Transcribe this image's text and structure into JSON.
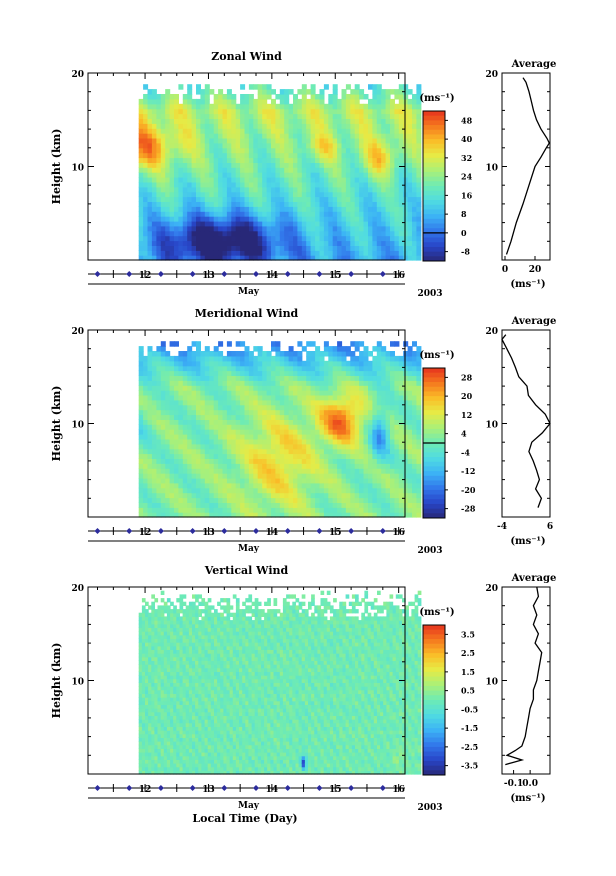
{
  "figure": {
    "bottom_xlabel": "Local Time (Day)",
    "colors": {
      "line": "#000000",
      "marker": "#2c2c9c",
      "missing": "#ffffff"
    }
  },
  "chart_data": [
    {
      "type": "heatmap",
      "title": "Zonal Wind",
      "ylabel": "Height (km)",
      "xlabel": "May",
      "year_label": "2003",
      "x_ticks": [
        "12",
        "13",
        "14",
        "15",
        "16"
      ],
      "y_ticks": [
        "10",
        "20"
      ],
      "xlim": [
        11.1,
        16.1
      ],
      "ylim": [
        0,
        20
      ],
      "colorbar": {
        "unit": "(ms⁻¹)",
        "tick_labels": [
          "48",
          "40",
          "32",
          "24",
          "16",
          "8",
          "0",
          "-8"
        ],
        "range": [
          -12,
          52
        ],
        "zero_line": 0
      },
      "profile": {
        "title": "Average",
        "xlabel": "(ms⁻¹)",
        "x_ticks": [
          "0",
          "20"
        ],
        "xlim": [
          -2,
          30
        ],
        "y": [
          0.6,
          2,
          4,
          6,
          8,
          10,
          11,
          12,
          12.5,
          13,
          14,
          15,
          16,
          17,
          18,
          19,
          19.5
        ],
        "x": [
          1,
          4,
          7.5,
          12,
          16,
          20,
          24,
          27.5,
          29.5,
          28,
          24,
          21,
          19,
          17.5,
          16,
          14,
          12
        ]
      }
    },
    {
      "type": "heatmap",
      "title": "Meridional Wind",
      "ylabel": "Height (km)",
      "xlabel": "May",
      "year_label": "2003",
      "x_ticks": [
        "12",
        "13",
        "14",
        "15",
        "16"
      ],
      "y_ticks": [
        "10",
        "20"
      ],
      "xlim": [
        11.1,
        16.1
      ],
      "ylim": [
        0,
        20
      ],
      "colorbar": {
        "unit": "(ms⁻¹)",
        "tick_labels": [
          "28",
          "20",
          "12",
          "4",
          "-4",
          "-12",
          "-20",
          "-28"
        ],
        "range": [
          -32,
          32
        ],
        "zero_line": 0
      },
      "profile": {
        "title": "Average",
        "xlabel": "(ms⁻¹)",
        "x_ticks": [
          "-4",
          "6"
        ],
        "xlim": [
          -4,
          6
        ],
        "y": [
          1,
          2,
          3,
          4,
          5,
          6,
          7,
          8,
          9,
          10,
          11,
          12,
          13,
          14,
          15,
          16,
          17,
          18,
          19,
          19.5
        ],
        "x": [
          3.5,
          4.2,
          3,
          3.8,
          3.2,
          2.5,
          1.6,
          2.2,
          4.4,
          6,
          5,
          3,
          1.5,
          1.2,
          -0.5,
          -1.2,
          -2,
          -3,
          -4,
          -3.2
        ]
      }
    },
    {
      "type": "heatmap",
      "title": "Vertical Wind",
      "ylabel": "Height (km)",
      "xlabel": "May",
      "year_label": "2003",
      "x_ticks": [
        "12",
        "13",
        "14",
        "15",
        "16"
      ],
      "y_ticks": [
        "10",
        "20"
      ],
      "xlim": [
        11.1,
        16.1
      ],
      "ylim": [
        0,
        20
      ],
      "colorbar": {
        "unit": "(ms⁻¹)",
        "tick_labels": [
          "3.5",
          "2.5",
          "1.5",
          "0.5",
          "-0.5",
          "-1.5",
          "-2.5",
          "-3.5"
        ],
        "range": [
          -4,
          4
        ]
      },
      "profile": {
        "title": "Average",
        "xlabel": "(ms⁻¹)",
        "x_ticks": [
          "-0.1",
          "0.0"
        ],
        "xlim": [
          -0.17,
          0.12
        ],
        "y": [
          1,
          1.5,
          2,
          2.5,
          3,
          4,
          5,
          6,
          7,
          8,
          9,
          10,
          11,
          12,
          13,
          14,
          15,
          16,
          17,
          18,
          19,
          20
        ],
        "x": [
          -0.15,
          -0.05,
          -0.14,
          -0.09,
          -0.05,
          -0.03,
          -0.02,
          -0.01,
          0.0,
          0.02,
          0.02,
          0.04,
          0.05,
          0.06,
          0.07,
          0.03,
          0.05,
          0.02,
          0.04,
          0.02,
          0.05,
          0.04
        ]
      }
    }
  ]
}
